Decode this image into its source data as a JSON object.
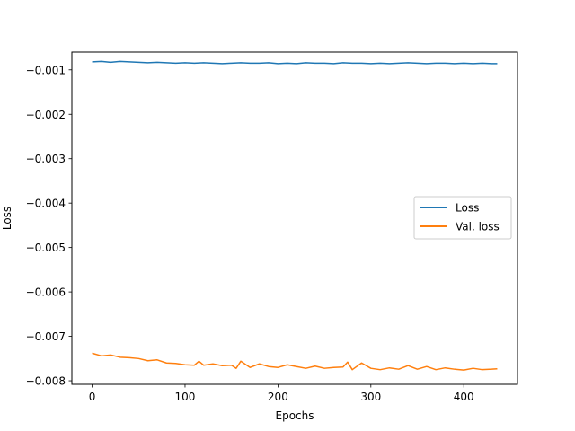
{
  "chart_data": {
    "type": "line",
    "title": "",
    "xlabel": "Epochs",
    "ylabel": "Loss",
    "xlim": [
      -21.8,
      457.8
    ],
    "ylim": [
      -0.00808,
      -0.0006
    ],
    "xticks": [
      0,
      100,
      200,
      300,
      400
    ],
    "xtick_labels": [
      "0",
      "100",
      "200",
      "300",
      "400"
    ],
    "yticks": [
      -0.008,
      -0.007,
      -0.006,
      -0.005,
      -0.004,
      -0.003,
      -0.002,
      -0.001
    ],
    "ytick_labels": [
      "−0.008",
      "−0.007",
      "−0.006",
      "−0.005",
      "−0.004",
      "−0.003",
      "−0.002",
      "−0.001"
    ],
    "grid": false,
    "legend": "center-right",
    "series": [
      {
        "name": "Loss",
        "color": "#1f77b4",
        "x": [
          0,
          10,
          20,
          30,
          40,
          50,
          60,
          70,
          80,
          90,
          100,
          110,
          120,
          130,
          140,
          150,
          160,
          170,
          180,
          190,
          200,
          210,
          220,
          230,
          240,
          250,
          260,
          270,
          280,
          290,
          300,
          310,
          320,
          330,
          340,
          350,
          360,
          370,
          380,
          390,
          400,
          410,
          420,
          430,
          436
        ],
        "y": [
          -0.00082,
          -0.00081,
          -0.00083,
          -0.00081,
          -0.00082,
          -0.00083,
          -0.00084,
          -0.00083,
          -0.00084,
          -0.00085,
          -0.00084,
          -0.00085,
          -0.00084,
          -0.00085,
          -0.00086,
          -0.00085,
          -0.00084,
          -0.00085,
          -0.00085,
          -0.00084,
          -0.00086,
          -0.00085,
          -0.00086,
          -0.00084,
          -0.00085,
          -0.00085,
          -0.00086,
          -0.00084,
          -0.00085,
          -0.00085,
          -0.00086,
          -0.00085,
          -0.00086,
          -0.00085,
          -0.00084,
          -0.00085,
          -0.00086,
          -0.00085,
          -0.00085,
          -0.00086,
          -0.00085,
          -0.00086,
          -0.00085,
          -0.00086,
          -0.00086
        ]
      },
      {
        "name": "Val. loss",
        "color": "#ff7f0e",
        "x": [
          0,
          10,
          20,
          30,
          40,
          50,
          60,
          70,
          80,
          90,
          100,
          110,
          115,
          120,
          130,
          140,
          150,
          155,
          160,
          170,
          180,
          190,
          200,
          210,
          220,
          230,
          240,
          250,
          260,
          270,
          275,
          280,
          290,
          300,
          310,
          320,
          330,
          340,
          350,
          360,
          370,
          380,
          390,
          400,
          410,
          420,
          430,
          436
        ],
        "y": [
          -0.00738,
          -0.00744,
          -0.00742,
          -0.00747,
          -0.00748,
          -0.0075,
          -0.00755,
          -0.00753,
          -0.0076,
          -0.00761,
          -0.00764,
          -0.00765,
          -0.00756,
          -0.00765,
          -0.00762,
          -0.00766,
          -0.00765,
          -0.00772,
          -0.00756,
          -0.0077,
          -0.00762,
          -0.00768,
          -0.0077,
          -0.00764,
          -0.00768,
          -0.00772,
          -0.00767,
          -0.00772,
          -0.0077,
          -0.00769,
          -0.00758,
          -0.00775,
          -0.0076,
          -0.00772,
          -0.00775,
          -0.00771,
          -0.00774,
          -0.00766,
          -0.00774,
          -0.00768,
          -0.00775,
          -0.00771,
          -0.00774,
          -0.00776,
          -0.00772,
          -0.00775,
          -0.00774,
          -0.00773
        ]
      }
    ]
  }
}
